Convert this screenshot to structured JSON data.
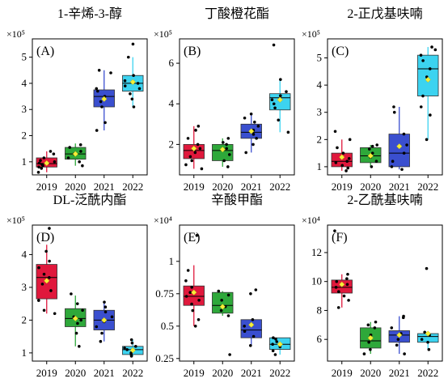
{
  "figure": {
    "panels_note": "",
    "colors": {
      "2019": "#e0183c",
      "2020": "#2ea83a",
      "2021": "#3a4fcf",
      "2022": "#3cd3f0",
      "mean_marker": "#f5ee3a",
      "point": "#000000"
    }
  },
  "chart_data": [
    {
      "type": "box",
      "panel": "(A)",
      "title": "1-辛烯-3-醇",
      "multiplier": "×10⁵",
      "categories": [
        "2019",
        "2020",
        "2021",
        "2022"
      ],
      "ylim": [
        0.5,
        5.7
      ],
      "yticks": [
        1,
        2,
        3,
        4,
        5
      ],
      "boxes": [
        {
          "q1": 0.8,
          "median": 0.93,
          "q3": 1.15,
          "whisker_low": 0.6,
          "whisker_high": 1.4,
          "mean": 0.95
        },
        {
          "q1": 1.1,
          "median": 1.3,
          "q3": 1.55,
          "whisker_low": 0.85,
          "whisker_high": 1.7,
          "mean": 1.3
        },
        {
          "q1": 3.1,
          "median": 3.5,
          "q3": 3.75,
          "whisker_low": 2.2,
          "whisker_high": 4.5,
          "mean": 3.4
        },
        {
          "q1": 3.7,
          "median": 4.0,
          "q3": 4.3,
          "whisker_low": 3.1,
          "whisker_high": 5.0,
          "mean": 4.05
        }
      ],
      "points": [
        [
          0.6,
          0.75,
          0.8,
          0.85,
          0.9,
          0.95,
          1.0,
          1.05,
          1.15,
          1.3,
          1.4
        ],
        [
          0.85,
          1.0,
          1.15,
          1.3,
          1.4,
          1.55,
          1.65
        ],
        [
          2.2,
          2.5,
          3.1,
          3.3,
          3.5,
          3.7,
          3.8,
          4.4,
          4.5
        ],
        [
          3.1,
          3.4,
          3.6,
          3.8,
          3.9,
          4.0,
          4.1,
          4.3,
          5.0,
          5.5
        ]
      ]
    },
    {
      "type": "box",
      "panel": "(B)",
      "title": "丁酸橙花酯",
      "multiplier": "×10⁵",
      "categories": [
        "2019",
        "2020",
        "2021",
        "2022"
      ],
      "ylim": [
        0.5,
        7.2
      ],
      "yticks": [
        2,
        4,
        6
      ],
      "boxes": [
        {
          "q1": 1.3,
          "median": 1.7,
          "q3": 2.0,
          "whisker_low": 0.8,
          "whisker_high": 2.9,
          "mean": 1.8
        },
        {
          "q1": 1.2,
          "median": 1.7,
          "q3": 2.0,
          "whisker_low": 0.9,
          "whisker_high": 2.3,
          "mean": 1.75
        },
        {
          "q1": 2.3,
          "median": 2.6,
          "q3": 3.0,
          "whisker_low": 1.6,
          "whisker_high": 3.5,
          "mean": 2.65
        },
        {
          "q1": 3.7,
          "median": 4.3,
          "q3": 4.5,
          "whisker_low": 2.6,
          "whisker_high": 5.2,
          "mean": 4.2
        }
      ],
      "points": [
        [
          0.8,
          1.0,
          1.2,
          1.4,
          1.6,
          1.8,
          2.0,
          2.3,
          2.7,
          2.9
        ],
        [
          0.9,
          1.2,
          1.5,
          1.8,
          2.0,
          2.1,
          2.3
        ],
        [
          1.6,
          2.0,
          2.3,
          2.5,
          2.7,
          2.9,
          3.1,
          3.3,
          3.5
        ],
        [
          2.6,
          3.2,
          3.8,
          4.0,
          4.2,
          4.4,
          4.6,
          5.2,
          6.9
        ]
      ]
    },
    {
      "type": "box",
      "panel": "(C)",
      "title": "2-正戊基呋喃",
      "multiplier": "×10⁵",
      "categories": [
        "2019",
        "2020",
        "2021",
        "2022"
      ],
      "ylim": [
        0.7,
        5.7
      ],
      "yticks": [
        1,
        2,
        3,
        4,
        5
      ],
      "boxes": [
        {
          "q1": 1.0,
          "median": 1.2,
          "q3": 1.5,
          "whisker_low": 0.85,
          "whisker_high": 2.0,
          "mean": 1.35
        },
        {
          "q1": 1.15,
          "median": 1.4,
          "q3": 1.7,
          "whisker_low": 1.0,
          "whisker_high": 1.8,
          "mean": 1.4
        },
        {
          "q1": 1.0,
          "median": 1.5,
          "q3": 2.2,
          "whisker_low": 0.9,
          "whisker_high": 3.2,
          "mean": 1.75
        },
        {
          "q1": 3.6,
          "median": 4.6,
          "q3": 5.1,
          "whisker_low": 2.0,
          "whisker_high": 5.4,
          "mean": 4.2
        }
      ],
      "points": [
        [
          0.85,
          0.95,
          1.05,
          1.15,
          1.2,
          1.3,
          1.5,
          1.7,
          2.0,
          2.3
        ],
        [
          1.0,
          1.2,
          1.35,
          1.5,
          1.65,
          1.75,
          1.8
        ],
        [
          0.9,
          1.0,
          1.2,
          1.5,
          1.8,
          2.2,
          3.0,
          3.2
        ],
        [
          2.0,
          2.9,
          3.2,
          3.6,
          4.3,
          4.6,
          4.9,
          5.1,
          5.3,
          5.4
        ]
      ]
    },
    {
      "type": "box",
      "panel": "(D)",
      "title": "DL-泛酰内酯",
      "multiplier": "×10⁵",
      "categories": [
        "2019",
        "2020",
        "2021",
        "2022"
      ],
      "ylim": [
        0.75,
        4.9
      ],
      "yticks": [
        1,
        2,
        3,
        4
      ],
      "boxes": [
        {
          "q1": 2.65,
          "median": 3.3,
          "q3": 3.7,
          "whisker_low": 2.2,
          "whisker_high": 4.3,
          "mean": 3.2
        },
        {
          "q1": 1.8,
          "median": 2.05,
          "q3": 2.35,
          "whisker_low": 1.2,
          "whisker_high": 2.75,
          "mean": 2.05
        },
        {
          "q1": 1.7,
          "median": 2.0,
          "q3": 2.3,
          "whisker_low": 1.35,
          "whisker_high": 2.55,
          "mean": 2.0
        },
        {
          "q1": 0.95,
          "median": 1.1,
          "q3": 1.2,
          "whisker_low": 0.9,
          "whisker_high": 1.4,
          "mean": 1.08
        }
      ],
      "points": [
        [
          2.2,
          2.3,
          2.6,
          2.9,
          3.1,
          3.3,
          3.4,
          3.6,
          3.8,
          4.1,
          4.8
        ],
        [
          1.2,
          1.6,
          1.9,
          2.0,
          2.1,
          2.3,
          2.5,
          2.8
        ],
        [
          1.35,
          1.6,
          1.8,
          1.95,
          2.1,
          2.25,
          2.4,
          2.55
        ],
        [
          0.9,
          0.95,
          1.0,
          1.1,
          1.15,
          1.2,
          1.3,
          1.4
        ]
      ]
    },
    {
      "type": "box",
      "panel": "(E)",
      "title": "辛酸甲酯",
      "multiplier": "×10⁴",
      "categories": [
        "2019",
        "2020",
        "2021",
        "2022"
      ],
      "ylim": [
        0.23,
        1.28
      ],
      "yticks": [
        0.25,
        0.5,
        0.75,
        1
      ],
      "boxes": [
        {
          "q1": 0.66,
          "median": 0.73,
          "q3": 0.81,
          "whisker_low": 0.5,
          "whisker_high": 0.97,
          "mean": 0.76
        },
        {
          "q1": 0.6,
          "median": 0.66,
          "q3": 0.76,
          "whisker_low": 0.58,
          "whisker_high": 0.77,
          "mean": 0.65
        },
        {
          "q1": 0.41,
          "median": 0.47,
          "q3": 0.55,
          "whisker_low": 0.35,
          "whisker_high": 0.55,
          "mean": 0.51
        },
        {
          "q1": 0.32,
          "median": 0.36,
          "q3": 0.41,
          "whisker_low": 0.28,
          "whisker_high": 0.41,
          "mean": 0.36
        }
      ],
      "points": [
        [
          0.5,
          0.55,
          0.62,
          0.67,
          0.7,
          0.73,
          0.76,
          0.8,
          0.85,
          0.93,
          1.2
        ],
        [
          0.28,
          0.58,
          0.62,
          0.65,
          0.7,
          0.74,
          0.77
        ],
        [
          0.35,
          0.42,
          0.46,
          0.5,
          0.55,
          0.75,
          0.78
        ],
        [
          0.28,
          0.31,
          0.34,
          0.36,
          0.38,
          0.41,
          0.4
        ]
      ]
    },
    {
      "type": "box",
      "panel": "(F)",
      "title": "2-乙酰基呋喃",
      "multiplier": "×10⁴",
      "categories": [
        "2019",
        "2020",
        "2021",
        "2022"
      ],
      "ylim": [
        4.5,
        13.9
      ],
      "yticks": [
        6,
        8,
        10,
        12
      ],
      "boxes": [
        {
          "q1": 9.2,
          "median": 9.6,
          "q3": 10.1,
          "whisker_low": 8.2,
          "whisker_high": 10.5,
          "mean": 9.8
        },
        {
          "q1": 5.4,
          "median": 5.9,
          "q3": 6.8,
          "whisker_low": 5.0,
          "whisker_high": 7.2,
          "mean": 6.1
        },
        {
          "q1": 5.8,
          "median": 6.3,
          "q3": 6.6,
          "whisker_low": 5.0,
          "whisker_high": 7.6,
          "mean": 6.3
        },
        {
          "q1": 5.8,
          "median": 6.2,
          "q3": 6.4,
          "whisker_low": 5.3,
          "whisker_high": 6.5,
          "mean": 6.4
        }
      ],
      "points": [
        [
          8.2,
          8.7,
          9.0,
          9.3,
          9.6,
          9.8,
          10.0,
          10.2,
          10.5,
          13.5
        ],
        [
          5.0,
          5.3,
          5.8,
          6.3,
          6.8,
          7.0,
          7.2
        ],
        [
          5.0,
          5.6,
          6.0,
          6.4,
          6.8,
          7.5,
          7.6
        ],
        [
          5.3,
          5.8,
          6.0,
          6.3,
          6.5,
          10.9
        ]
      ]
    }
  ]
}
